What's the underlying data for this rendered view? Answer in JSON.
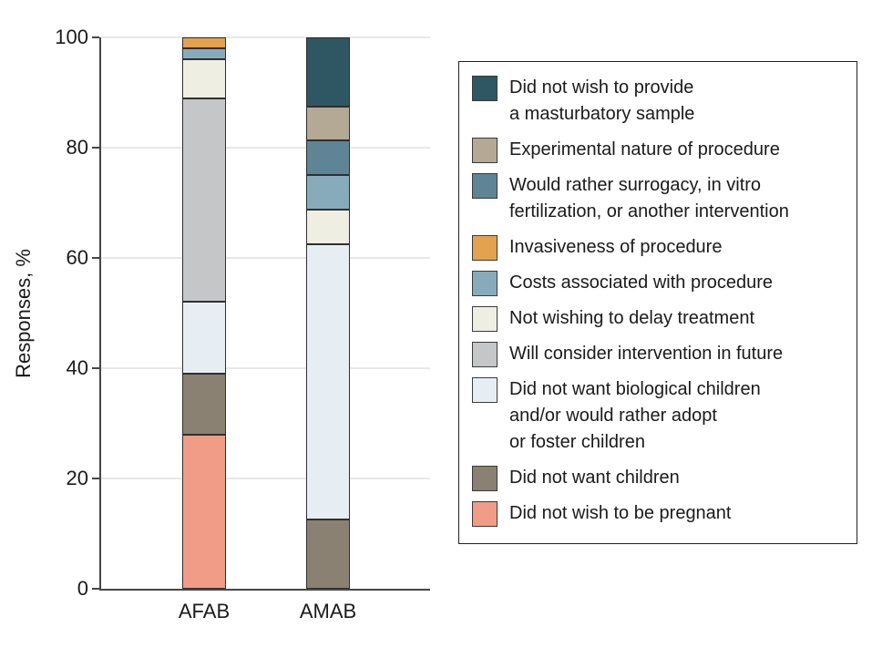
{
  "figure": {
    "background": "#ffffff",
    "text_color": "#1a1a1a",
    "axis_color": "#454545",
    "gridline_color": "#e8e8e8",
    "segment_border_color": "#2f2f2f"
  },
  "chart_data": {
    "type": "bar",
    "stacked": true,
    "categories": [
      "AFAB",
      "AMAB"
    ],
    "xlabel": "",
    "ylabel": "Responses, %",
    "ylim": [
      0,
      100
    ],
    "yticks": [
      0,
      20,
      40,
      60,
      80,
      100
    ],
    "grid": true,
    "legend_position": "right",
    "series_order": "legend order, top of stack first",
    "series": [
      {
        "name": "Did not wish to provide\na masturbatory sample",
        "color": "#2f5663",
        "values": [
          0,
          12.5
        ]
      },
      {
        "name": "Experimental nature of procedure",
        "color": "#b3a995",
        "values": [
          0,
          6.25
        ]
      },
      {
        "name": "Would rather surrogacy, in vitro\nfertilization, or another intervention",
        "color": "#5f8495",
        "values": [
          0,
          6.25
        ]
      },
      {
        "name": "Invasiveness of procedure",
        "color": "#e3a24f",
        "values": [
          2,
          0
        ]
      },
      {
        "name": "Costs associated with procedure",
        "color": "#88abbc",
        "values": [
          2,
          6.25
        ]
      },
      {
        "name": "Not wishing to delay treatment",
        "color": "#efeee2",
        "values": [
          7,
          6.25
        ]
      },
      {
        "name": "Will consider intervention in future",
        "color": "#c5c6c8",
        "values": [
          37,
          0
        ]
      },
      {
        "name": "Did not want biological children\nand/or would rather adopt\nor foster children",
        "color": "#e7eef3",
        "values": [
          13,
          50
        ]
      },
      {
        "name": "Did not want children",
        "color": "#8a8173",
        "values": [
          11,
          12.5
        ]
      },
      {
        "name": "Did not wish to be pregnant",
        "color": "#f19c86",
        "values": [
          28,
          0
        ]
      }
    ]
  }
}
